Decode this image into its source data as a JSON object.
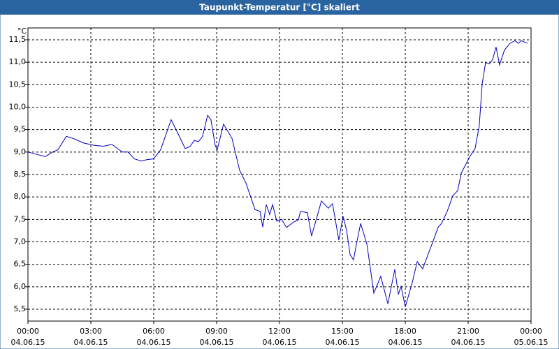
{
  "chart_data": {
    "type": "line",
    "title": "Taupunkt-Temperatur [°C] skaliert",
    "y_unit": "°C",
    "series": [
      {
        "color": "#0000c0",
        "x": [
          0,
          0.83,
          1.17,
          1.43,
          1.83,
          2.17,
          2.67,
          3.17,
          3.6,
          4.0,
          4.5,
          4.77,
          5.07,
          5.4,
          5.67,
          6.0,
          6.33,
          6.83,
          7.17,
          7.5,
          7.73,
          7.93,
          8.13,
          8.33,
          8.57,
          8.73,
          8.93,
          9.03,
          9.33,
          9.73,
          10.1,
          10.4,
          10.83,
          11.07,
          11.2,
          11.37,
          11.53,
          11.67,
          11.87,
          12.1,
          12.33,
          12.67,
          12.9,
          13.0,
          13.33,
          13.53,
          14.0,
          14.33,
          14.53,
          14.83,
          15.03,
          15.2,
          15.37,
          15.53,
          15.67,
          15.87,
          16.17,
          16.5,
          16.83,
          17.17,
          17.5,
          17.67,
          17.8,
          18.0,
          18.33,
          18.57,
          18.83,
          19.33,
          19.57,
          19.73,
          20.0,
          20.27,
          20.5,
          20.67,
          21.07,
          21.33,
          21.53,
          21.67,
          21.83,
          22.0,
          22.17,
          22.33,
          22.5,
          22.73,
          23.0,
          23.23,
          23.4,
          23.53,
          23.83
        ],
        "values": [
          9.0,
          8.9,
          9.0,
          9.05,
          9.35,
          9.3,
          9.2,
          9.15,
          9.13,
          9.17,
          9.0,
          9.0,
          8.85,
          8.8,
          8.83,
          8.85,
          9.05,
          9.72,
          9.4,
          9.08,
          9.12,
          9.26,
          9.23,
          9.35,
          9.82,
          9.72,
          9.15,
          9.05,
          9.62,
          9.31,
          8.59,
          8.31,
          7.72,
          7.68,
          7.33,
          7.83,
          7.61,
          7.83,
          7.46,
          7.5,
          7.32,
          7.44,
          7.49,
          7.68,
          7.65,
          7.13,
          7.91,
          7.75,
          7.85,
          7.04,
          7.57,
          7.26,
          6.71,
          6.6,
          6.95,
          7.41,
          6.95,
          5.86,
          6.23,
          5.62,
          6.39,
          5.83,
          6.01,
          5.55,
          6.09,
          6.56,
          6.4,
          7.02,
          7.33,
          7.41,
          7.68,
          8.03,
          8.14,
          8.53,
          8.89,
          9.08,
          9.59,
          10.52,
          10.99,
          10.96,
          11.06,
          11.34,
          10.94,
          11.27,
          11.42,
          11.48,
          11.42,
          11.48,
          11.42
        ]
      }
    ],
    "xlim": [
      0,
      24
    ],
    "xticks": [
      {
        "value": 0,
        "label": "00:00",
        "date": "04.06.15"
      },
      {
        "value": 3,
        "label": "03:00",
        "date": "04.06.15"
      },
      {
        "value": 6,
        "label": "06:00",
        "date": "04.06.15"
      },
      {
        "value": 9,
        "label": "09:00",
        "date": "04.06.15"
      },
      {
        "value": 12,
        "label": "12:00",
        "date": "04.06.15"
      },
      {
        "value": 15,
        "label": "15:00",
        "date": "04.06.15"
      },
      {
        "value": 18,
        "label": "18:00",
        "date": "04.06.15"
      },
      {
        "value": 21,
        "label": "21:00",
        "date": "04.06.15"
      },
      {
        "value": 24,
        "label": "00:00",
        "date": "05.06.15"
      }
    ],
    "ylim": [
      5.236,
      11.764
    ],
    "yticks": [
      {
        "value": 5.5,
        "label": "5,5"
      },
      {
        "value": 6,
        "label": "6,0"
      },
      {
        "value": 6.5,
        "label": "6,5"
      },
      {
        "value": 7,
        "label": "7,0"
      },
      {
        "value": 7.5,
        "label": "7,5"
      },
      {
        "value": 8,
        "label": "8,0"
      },
      {
        "value": 8.5,
        "label": "8,5"
      },
      {
        "value": 9,
        "label": "9,0"
      },
      {
        "value": 9.5,
        "label": "9,5"
      },
      {
        "value": 10,
        "label": "10,0"
      },
      {
        "value": 10.5,
        "label": "10,5"
      },
      {
        "value": 11,
        "label": "11,0"
      },
      {
        "value": 11.5,
        "label": "11,5"
      }
    ],
    "grid": true
  }
}
